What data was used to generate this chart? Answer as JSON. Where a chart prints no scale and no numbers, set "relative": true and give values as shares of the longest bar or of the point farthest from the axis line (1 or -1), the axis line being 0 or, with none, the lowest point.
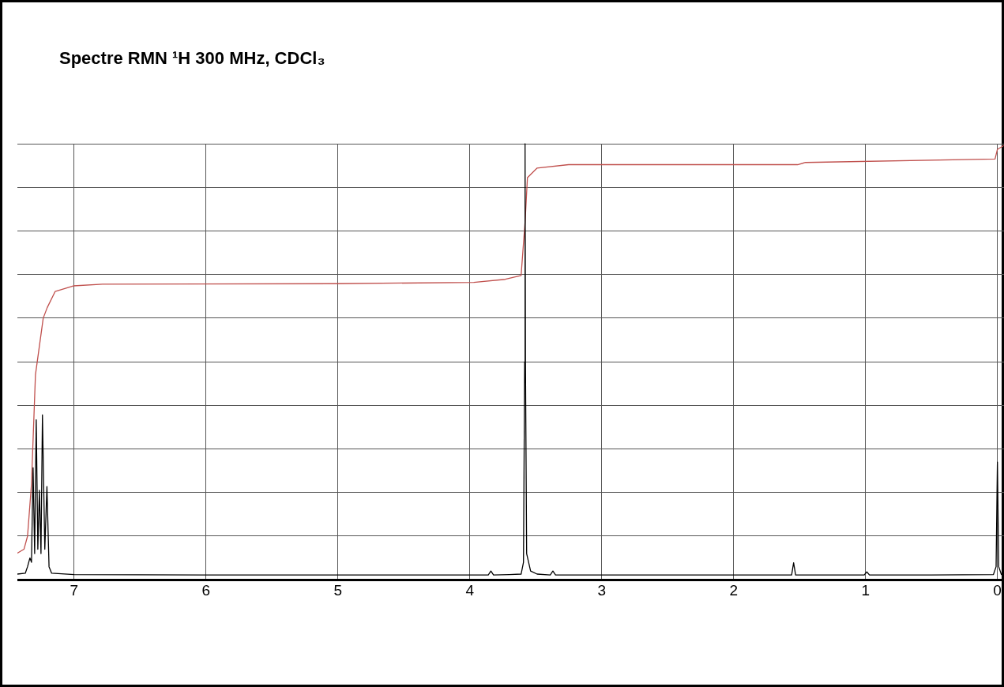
{
  "chart_data": {
    "type": "line",
    "title": "Spectre RMN ¹H 300 MHz, CDCl₃",
    "relative": true,
    "xlim": [
      7.43,
      -0.05
    ],
    "xticks": [
      7,
      6,
      5,
      4,
      3,
      2,
      1,
      0
    ],
    "grid": true,
    "legend": false,
    "marker": "none",
    "line_style": "solid",
    "series": [
      {
        "color": "#000000",
        "x": [
          7.43,
          7.37,
          7.353,
          7.335,
          7.323,
          7.311,
          7.299,
          7.287,
          7.275,
          7.263,
          7.251,
          7.24,
          7.222,
          7.206,
          7.19,
          7.17,
          7.0,
          6.0,
          5.0,
          4.0,
          3.86,
          3.84,
          3.82,
          3.7,
          3.611,
          3.593,
          3.584,
          3.581,
          3.578,
          3.569,
          3.539,
          3.49,
          3.39,
          3.37,
          3.35,
          3.0,
          2.0,
          1.56,
          1.545,
          1.53,
          1.01,
          0.99,
          0.97,
          0.5,
          0.03,
          0.01,
          0.0,
          -0.01,
          -0.03,
          -0.05
        ],
        "values": [
          0.013,
          0.015,
          0.03,
          0.05,
          0.04,
          0.257,
          0.06,
          0.367,
          0.07,
          0.205,
          0.06,
          0.378,
          0.07,
          0.214,
          0.03,
          0.015,
          0.012,
          0.011,
          0.011,
          0.011,
          0.011,
          0.02,
          0.011,
          0.012,
          0.013,
          0.04,
          0.5,
          1.0,
          0.5,
          0.06,
          0.02,
          0.013,
          0.011,
          0.02,
          0.011,
          0.011,
          0.011,
          0.011,
          0.039,
          0.011,
          0.011,
          0.018,
          0.011,
          0.011,
          0.012,
          0.03,
          0.27,
          0.03,
          0.012,
          0.011
        ]
      },
      {
        "color": "#c0504d",
        "x": [
          7.43,
          7.38,
          7.353,
          7.323,
          7.293,
          7.234,
          7.204,
          7.144,
          7.006,
          6.784,
          5.0,
          3.97,
          3.731,
          3.611,
          3.581,
          3.563,
          3.491,
          3.251,
          1.515,
          1.455,
          0.018,
          0.0,
          -0.048
        ],
        "values": [
          0.061,
          0.07,
          0.1,
          0.22,
          0.47,
          0.6,
          0.624,
          0.661,
          0.674,
          0.678,
          0.679,
          0.682,
          0.689,
          0.698,
          0.82,
          0.922,
          0.944,
          0.952,
          0.952,
          0.957,
          0.965,
          0.987,
          0.996
        ]
      }
    ]
  }
}
